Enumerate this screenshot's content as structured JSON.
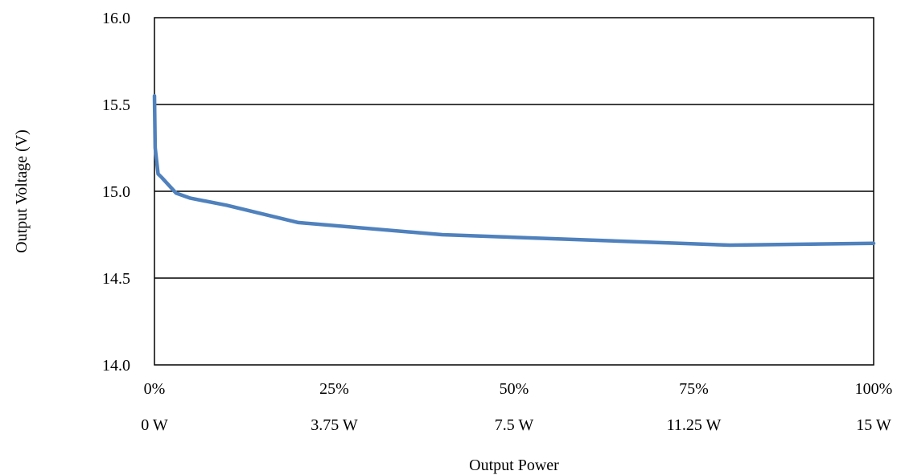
{
  "chart_data": {
    "type": "line",
    "title": "",
    "xlabel": "Output Power",
    "ylabel": "Output Voltage (V)",
    "xlim": [
      0,
      100
    ],
    "ylim": [
      14.0,
      16.0
    ],
    "grid": true,
    "legend": "none",
    "x_ticks": [
      0,
      25,
      50,
      75,
      100
    ],
    "x_tick_labels_pct": [
      "0%",
      "25%",
      "50%",
      "75%",
      "100%"
    ],
    "x_tick_labels_watt": [
      "0 W",
      "3.75 W",
      "7.5 W",
      "11.25 W",
      "15 W"
    ],
    "y_ticks": [
      14.0,
      14.5,
      15.0,
      15.5,
      16.0
    ],
    "y_tick_labels": [
      "14.0",
      "14.5",
      "15.0",
      "15.5",
      "16.0"
    ],
    "series": [
      {
        "color": "#4f81bd",
        "x": [
          0,
          0.1,
          0.5,
          1,
          3,
          5,
          10,
          20,
          40,
          60,
          80,
          100
        ],
        "y": [
          15.55,
          15.25,
          15.1,
          15.08,
          14.99,
          14.96,
          14.92,
          14.82,
          14.75,
          14.72,
          14.69,
          14.7
        ]
      }
    ]
  }
}
